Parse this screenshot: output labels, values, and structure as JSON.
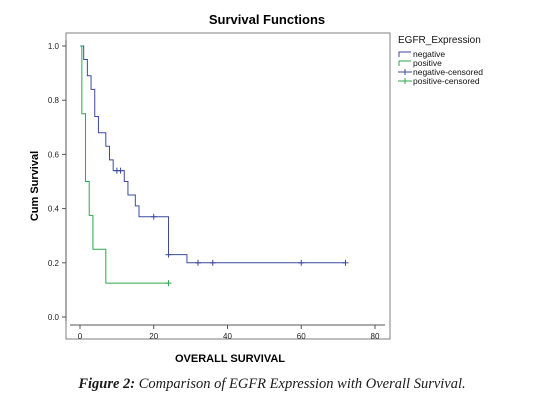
{
  "chart_data": {
    "type": "line",
    "title": "Survival Functions",
    "xlabel": "OVERALL SURVIVAL",
    "ylabel": "Cum Survival",
    "xlim": [
      0,
      80
    ],
    "ylim": [
      0,
      1.0
    ],
    "x_ticks": [
      "0",
      "20",
      "40",
      "60",
      "80"
    ],
    "y_ticks": [
      "0.0",
      "0.2",
      "0.4",
      "0.6",
      "0.8",
      "1.0"
    ],
    "grid": false,
    "legend_title": "EGFR_Expression",
    "legend_position": "top-right",
    "legend_entries": [
      "negative",
      "positive",
      "negative-censored",
      "positive-censored"
    ],
    "series": [
      {
        "name": "negative",
        "step_points": [
          [
            0,
            1.0
          ],
          [
            1,
            0.95
          ],
          [
            2,
            0.89
          ],
          [
            3,
            0.84
          ],
          [
            4,
            0.74
          ],
          [
            5,
            0.68
          ],
          [
            7,
            0.63
          ],
          [
            8,
            0.58
          ],
          [
            9,
            0.54
          ],
          [
            12,
            0.5
          ],
          [
            13,
            0.45
          ],
          [
            15,
            0.41
          ],
          [
            16,
            0.37
          ],
          [
            24,
            0.37
          ],
          [
            24,
            0.23
          ],
          [
            29,
            0.23
          ],
          [
            29,
            0.2
          ],
          [
            72,
            0.2
          ]
        ],
        "censored": [
          [
            10,
            0.54
          ],
          [
            11,
            0.54
          ],
          [
            20,
            0.37
          ],
          [
            24,
            0.23
          ],
          [
            32,
            0.2
          ],
          [
            36,
            0.2
          ],
          [
            60,
            0.2
          ],
          [
            72,
            0.2
          ]
        ]
      },
      {
        "name": "positive",
        "step_points": [
          [
            0,
            1.0
          ],
          [
            0.5,
            0.75
          ],
          [
            1.5,
            0.5
          ],
          [
            2.5,
            0.375
          ],
          [
            3.5,
            0.25
          ],
          [
            7,
            0.25
          ],
          [
            7,
            0.125
          ],
          [
            24,
            0.125
          ]
        ],
        "censored": [
          [
            24,
            0.125
          ]
        ]
      }
    ],
    "colors": {
      "negative": "#3b4a9e",
      "positive": "#2ea84a"
    }
  },
  "caption": {
    "label": "Figure 2:",
    "text": "Comparison of EGFR Expression with Overall Survival."
  }
}
